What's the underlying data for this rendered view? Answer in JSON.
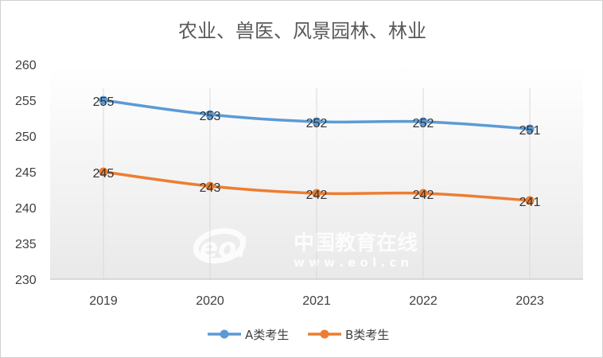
{
  "chart_data": {
    "type": "line",
    "title": "农业、兽医、风景园林、林业",
    "categories": [
      "2019",
      "2020",
      "2021",
      "2022",
      "2023"
    ],
    "series": [
      {
        "name": "A类考生",
        "values": [
          255,
          253,
          252,
          252,
          251
        ],
        "color": "#5b9bd5"
      },
      {
        "name": "B类考生",
        "values": [
          245,
          243,
          242,
          242,
          241
        ],
        "color": "#ed7d31"
      }
    ],
    "yticks": [
      "230",
      "235",
      "240",
      "245",
      "250",
      "255",
      "260"
    ],
    "ylim": [
      230,
      260
    ],
    "grid": "vertical",
    "legend": "bottom",
    "data_labels": true
  },
  "watermark": {
    "logo_text": "eol",
    "name": "中国教育在线",
    "url": "w w w . e o l . c n"
  }
}
